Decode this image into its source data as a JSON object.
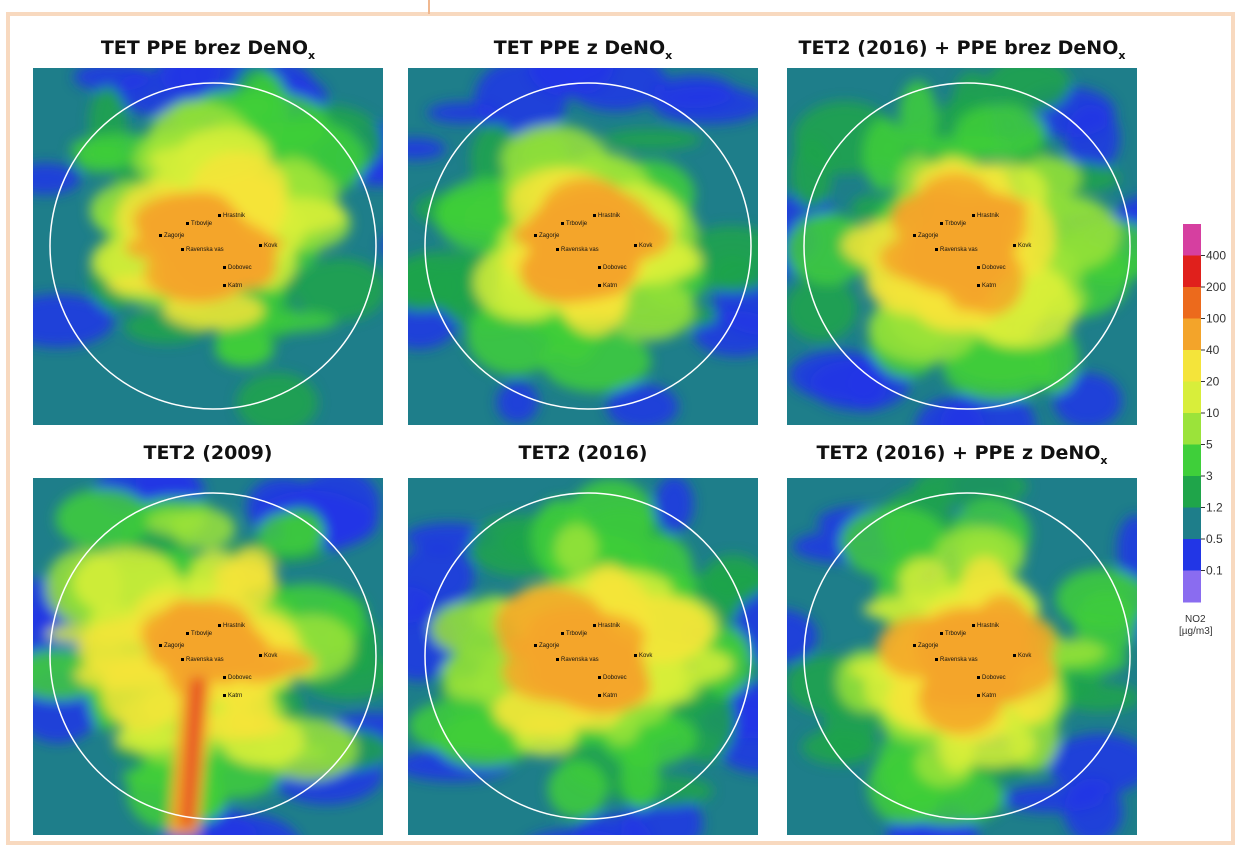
{
  "panels": [
    {
      "title": {
        "text": "TET PPE brez DeNO",
        "sub": "x"
      }
    },
    {
      "title": {
        "text": "TET PPE z DeNO",
        "sub": "x"
      }
    },
    {
      "title": {
        "text": "TET2 (2016) + PPE brez DeNO",
        "sub": "x"
      }
    },
    {
      "title": {
        "text": "TET2 (2009)"
      }
    },
    {
      "title": {
        "text": "TET2 (2016)"
      }
    },
    {
      "title": {
        "text": "TET2 (2016) + PPE z DeNO",
        "sub": "x"
      }
    }
  ],
  "places": [
    "Hrastnik",
    "Trbovlje",
    "Zagorje",
    "Kovk",
    "Ravenska vas",
    "Dobovec",
    "Katrn"
  ],
  "legend": {
    "levels": [
      400,
      200,
      100,
      40,
      20,
      10,
      5,
      3,
      1.2,
      0.5,
      0.1
    ],
    "colors": [
      "#d63fa0",
      "#e0201c",
      "#ec6a1c",
      "#f3a42a",
      "#f4e43a",
      "#d8ee3a",
      "#9be33a",
      "#3fcf3a",
      "#1fa54a",
      "#1e7e8a",
      "#2236e6",
      "#8a6cf0"
    ],
    "title": "NO2",
    "unit": "[µg/m3]"
  }
}
